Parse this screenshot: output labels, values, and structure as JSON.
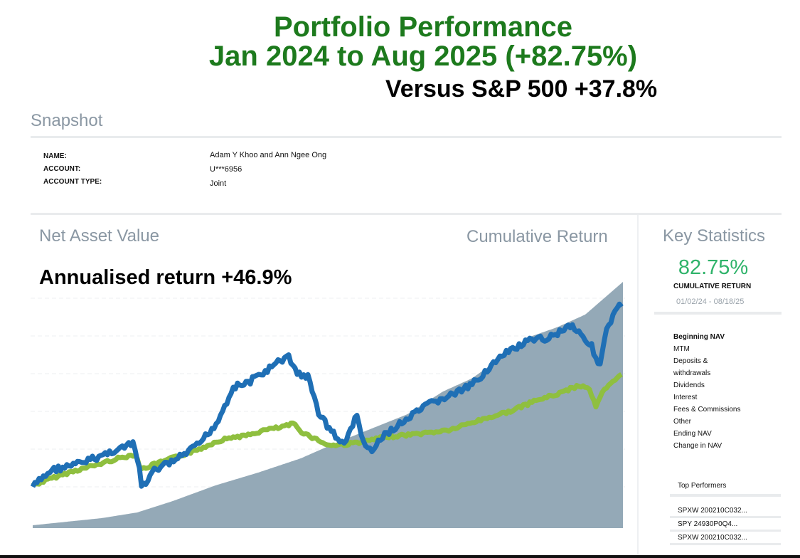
{
  "header": {
    "title_line1": "Portfolio Performance",
    "title_line2": "Jan 2024 to Aug 2025 (+82.75%)",
    "versus": "Versus S&P 500 +37.8%"
  },
  "snapshot": {
    "heading": "Snapshot",
    "rows": [
      {
        "label": "NAME:",
        "value": "Adam Y Khoo and Ann Ngee Ong"
      },
      {
        "label": "ACCOUNT:",
        "value": "U***6956"
      },
      {
        "label": "ACCOUNT TYPE:",
        "value": "Joint"
      }
    ]
  },
  "sections": {
    "nav_heading": "Net Asset Value",
    "cum_heading": "Cumulative Return",
    "key_heading": "Key Statistics"
  },
  "chart": {
    "annotation": "Annualised return +46.9%",
    "colors": {
      "portfolio": "#1f6fb5",
      "benchmark": "#8fbf3f",
      "nav_area": "#8ea4b3"
    }
  },
  "key_statistics": {
    "cumulative_return_value": "82.75%",
    "cumulative_return_label": "CUMULATIVE RETURN",
    "date_range": "01/02/24 - 08/18/25",
    "items": [
      "Beginning NAV",
      "MTM",
      "Deposits &",
      "withdrawals",
      "Dividends",
      "Interest",
      "Fees & Commissions",
      "Other",
      "Ending NAV",
      "Change in NAV"
    ]
  },
  "top_performers": {
    "heading": "Top Performers",
    "items": [
      "SPXW  200210C032...",
      "SPY  24930P0Q4...",
      "SPXW  200210C032..."
    ]
  }
}
